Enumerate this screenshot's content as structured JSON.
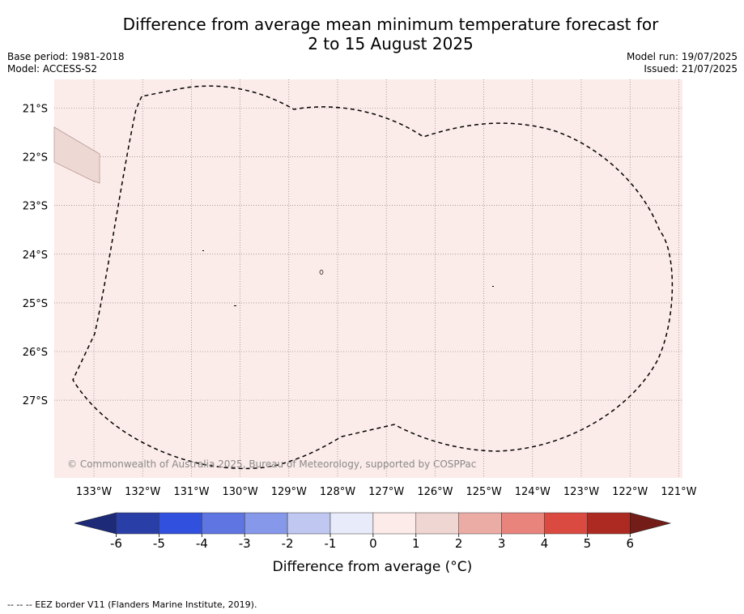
{
  "title_line1": "Difference from average mean minimum temperature forecast for",
  "title_line2": "2 to 15 August 2025",
  "base_period": "Base period: 1981-2018",
  "model": "Model: ACCESS-S2",
  "model_run": "Model run: 19/07/2025",
  "issued": "Issued: 21/07/2025",
  "copyright": "© Commonwealth of Australia 2025, Bureau of Meteorology, supported by COSPPac",
  "lon_labels": [
    "133°W",
    "132°W",
    "131°W",
    "130°W",
    "129°W",
    "128°W",
    "127°W",
    "126°W",
    "125°W",
    "124°W",
    "123°W",
    "122°W",
    "121°W"
  ],
  "lat_labels": [
    "21°S",
    "22°S",
    "23°S",
    "24°S",
    "25°S",
    "26°S",
    "27°S"
  ],
  "colorbar": {
    "ticks": [
      "-6",
      "-5",
      "-4",
      "-3",
      "-2",
      "-1",
      "0",
      "1",
      "2",
      "3",
      "4",
      "5",
      "6"
    ],
    "colors": [
      "#2a3ea8",
      "#3150de",
      "#5e75e2",
      "#8698ea",
      "#c0c8f2",
      "#e8ebfa",
      "#fcebe8",
      "#f0d6d2",
      "#ecaca6",
      "#e8847c",
      "#da4a40",
      "#ad2a22"
    ],
    "under_color": "#1c2a78",
    "over_color": "#741c17",
    "label": "Difference from average (°C)"
  },
  "map_colors": {
    "background": "#fbebe9",
    "island": "#eed8d4"
  },
  "footnote": "--  --  -- EEZ border V11 (Flanders Marine Institute, 2019)."
}
